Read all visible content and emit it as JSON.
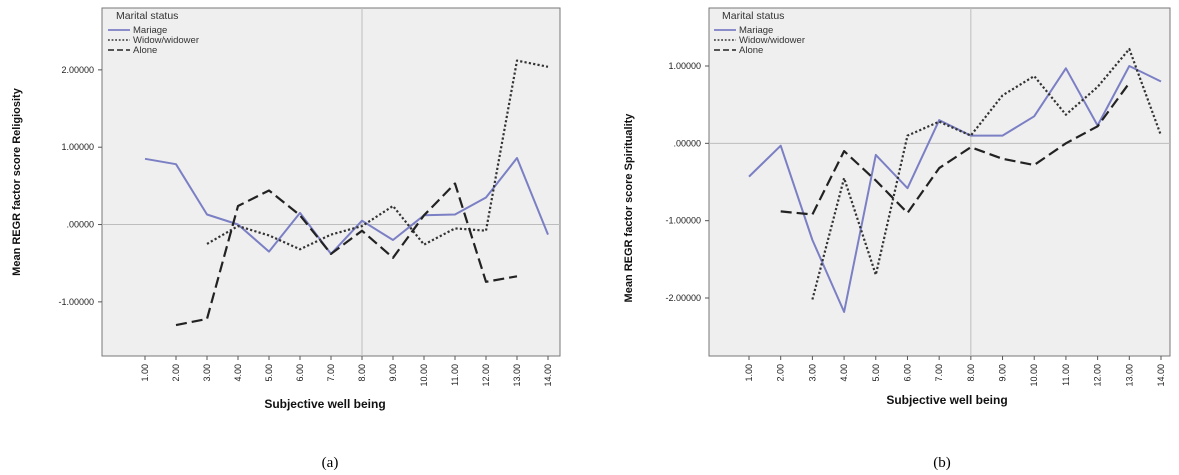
{
  "chart_data": [
    {
      "type": "line",
      "panel_label": "(a)",
      "xlabel": "Subjective well being",
      "ylabel": "Mean REGR factor score   Religiosity",
      "legend_title": "Marital status",
      "legend_placement": "top-left",
      "x": [
        "1.00",
        "2.00",
        "3.00",
        "4.00",
        "5.00",
        "6.00",
        "7.00",
        "8.00",
        "9.00",
        "10.00",
        "11.00",
        "12.00",
        "13.00",
        "14.00"
      ],
      "ylim": [
        -1.7,
        2.8
      ],
      "yticks": [
        2,
        1,
        0,
        -1
      ],
      "ytick_labels": [
        "2.00000",
        "1.00000",
        ".00000",
        "-1.00000"
      ],
      "ref_x": "8.00",
      "ref_y": 0,
      "series": [
        {
          "name": "Mariage",
          "style": "solid",
          "color": "#7b7fc4",
          "values": [
            0.85,
            0.78,
            0.13,
            0.0,
            -0.35,
            0.15,
            -0.38,
            0.05,
            -0.2,
            0.12,
            0.13,
            0.35,
            0.86,
            -0.13
          ]
        },
        {
          "name": "Widow/widower",
          "style": "dotted",
          "color": "#333333",
          "values": [
            null,
            null,
            -0.25,
            -0.02,
            -0.14,
            -0.32,
            -0.13,
            -0.02,
            0.24,
            -0.26,
            -0.05,
            -0.08,
            2.12,
            2.04
          ]
        },
        {
          "name": "Alone",
          "style": "dashed",
          "color": "#222222",
          "values": [
            null,
            -1.3,
            -1.22,
            0.24,
            0.44,
            0.12,
            -0.38,
            -0.08,
            -0.43,
            0.12,
            0.53,
            -0.74,
            -0.67,
            null
          ]
        }
      ]
    },
    {
      "type": "line",
      "panel_label": "(b)",
      "xlabel": "Subjective well being",
      "ylabel": "Mean REGR factor score   Spirituality",
      "legend_title": "Marital status",
      "legend_placement": "top-left",
      "x": [
        "1.00",
        "2.00",
        "3.00",
        "4.00",
        "5.00",
        "6.00",
        "7.00",
        "8.00",
        "9.00",
        "10.00",
        "11.00",
        "12.00",
        "13.00",
        "14.00"
      ],
      "ylim": [
        -2.75,
        1.75
      ],
      "yticks": [
        1,
        0,
        -1,
        -2
      ],
      "ytick_labels": [
        "1.00000",
        ".00000",
        "-1.00000",
        "-2.00000"
      ],
      "ref_x": "8.00",
      "ref_y": 0,
      "series": [
        {
          "name": "Mariage",
          "style": "solid",
          "color": "#7b7fc4",
          "values": [
            -0.43,
            -0.03,
            -1.25,
            -2.18,
            -0.15,
            -0.58,
            0.3,
            0.1,
            0.1,
            0.35,
            0.97,
            0.23,
            1.0,
            0.8
          ]
        },
        {
          "name": "Widow/widower",
          "style": "dotted",
          "color": "#333333",
          "values": [
            null,
            null,
            -2.02,
            -0.45,
            -1.7,
            0.1,
            0.28,
            0.1,
            0.62,
            0.87,
            0.37,
            0.73,
            1.22,
            0.1
          ]
        },
        {
          "name": "Alone",
          "style": "dashed",
          "color": "#222222",
          "values": [
            null,
            -0.88,
            -0.92,
            -0.1,
            -0.48,
            -0.9,
            -0.32,
            -0.05,
            -0.2,
            -0.28,
            0.0,
            0.22,
            0.78,
            null
          ]
        }
      ]
    }
  ]
}
